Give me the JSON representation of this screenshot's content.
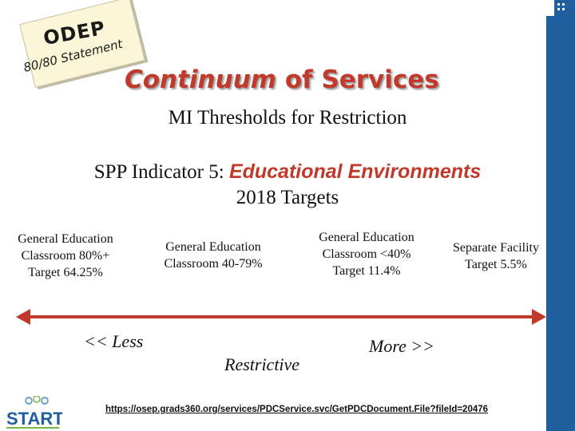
{
  "logo": {
    "title": "ODEP",
    "subtitle": "80/80 Statement"
  },
  "header": {
    "title_part1": "Continuum",
    "title_part2": " of Services",
    "subtitle": "MI Thresholds for Restriction"
  },
  "indicator": {
    "prefix": "SPP Indicator 5: ",
    "name": "Educational Environments",
    "year_line": "2018 Targets"
  },
  "columns": [
    {
      "lines": [
        "General Education",
        "Classroom 80%+",
        "Target 64.25%"
      ]
    },
    {
      "lines": [
        "General Education",
        "Classroom 40-79%"
      ]
    },
    {
      "lines": [
        "General Education",
        "Classroom <40%",
        "Target 11.4%"
      ]
    },
    {
      "lines": [
        "Separate Facility",
        "Target 5.5%"
      ]
    }
  ],
  "scale": {
    "less": "<< Less",
    "middle": "Restrictive",
    "more": "More >>"
  },
  "footer": {
    "url": "https://osep.grads360.org/services/PDCService.svc/GetPDCDocument.File?fileId=20476",
    "brand": "START"
  },
  "colors": {
    "accent_red": "#c0392b",
    "sidebar_blue": "#1f5fa0",
    "arrow_red": "#c0392b"
  }
}
